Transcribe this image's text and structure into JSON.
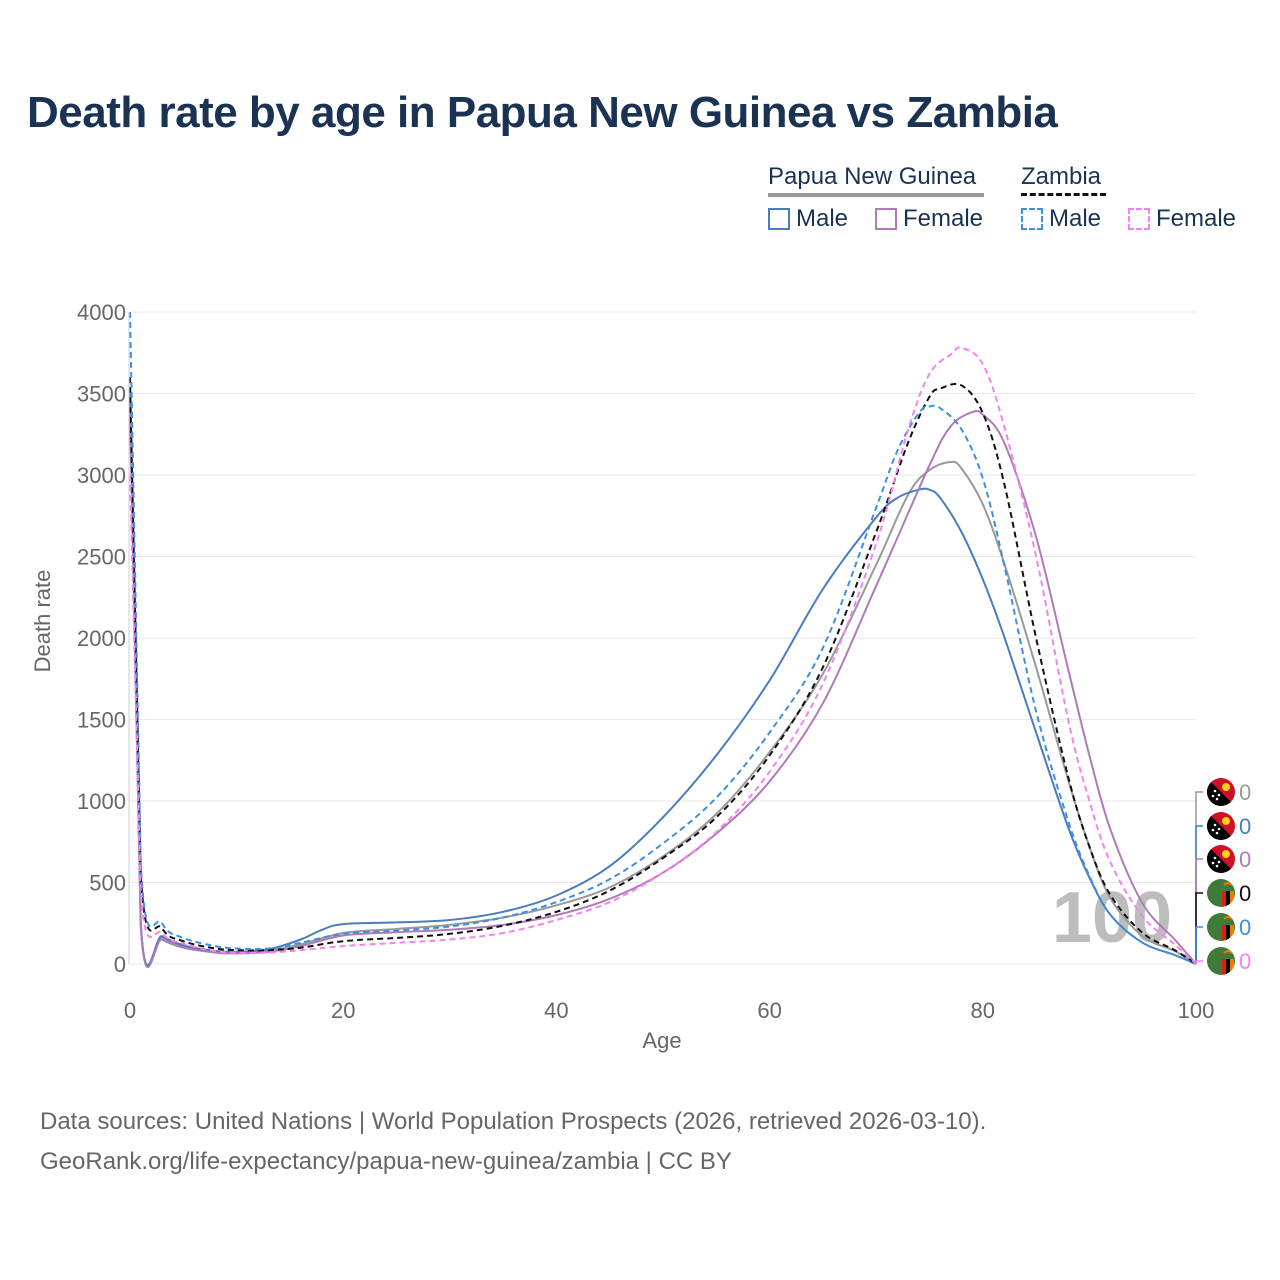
{
  "title": "Death rate by age in Papua New Guinea vs Zambia",
  "legend": {
    "group1": "Papua New Guinea",
    "group2": "Zambia",
    "male": "Male",
    "female": "Female"
  },
  "footer": {
    "line1": "Data sources: United Nations | World Population Prospects (2026, retrieved 2026-03-10).",
    "line2": "GeoRank.org/life-expectancy/papua-new-guinea/zambia | CC BY"
  },
  "watermark": "100",
  "colors": {
    "png_total": "#999999",
    "png_male": "#4a7cc0",
    "png_female": "#b07ab8",
    "zmb_total": "#111111",
    "zmb_male": "#3d8fe0",
    "zmb_female": "#f283f0",
    "title": "#1b3353",
    "axis_text": "#666666",
    "grid": "#e8e8e8"
  },
  "end_labels": [
    {
      "value": "0",
      "flag": "png-flag-icon",
      "series": "png_total"
    },
    {
      "value": "0",
      "flag": "png-flag-icon",
      "series": "png_male"
    },
    {
      "value": "0",
      "flag": "png-flag-icon",
      "series": "png_female"
    },
    {
      "value": "0",
      "flag": "zambia-flag-icon",
      "series": "zmb_total"
    },
    {
      "value": "0",
      "flag": "zambia-flag-icon",
      "series": "zmb_male"
    },
    {
      "value": "0",
      "flag": "zambia-flag-icon",
      "series": "zmb_female"
    }
  ],
  "chart_data": {
    "type": "line",
    "xlabel": "Age",
    "ylabel": "Death rate",
    "xlim": [
      0,
      100
    ],
    "ylim": [
      0,
      4000
    ],
    "xticks": [
      0,
      20,
      40,
      60,
      80,
      100
    ],
    "yticks": [
      0,
      500,
      1000,
      1500,
      2000,
      2500,
      3000,
      3500,
      4000
    ],
    "grid": true,
    "series": [
      {
        "name": "Papua New Guinea Total",
        "key": "png_total",
        "dashed": false,
        "x": [
          0,
          1,
          3,
          5,
          8,
          10,
          13,
          16,
          20,
          25,
          30,
          35,
          40,
          45,
          50,
          55,
          60,
          65,
          70,
          73,
          75,
          77,
          78,
          80,
          82,
          85,
          88,
          90,
          92,
          95,
          98,
          100
        ],
        "y": [
          3450,
          250,
          160,
          110,
          75,
          70,
          80,
          120,
          190,
          215,
          240,
          285,
          360,
          470,
          660,
          920,
          1300,
          1780,
          2450,
          2880,
          3030,
          3080,
          3040,
          2820,
          2460,
          1820,
          1130,
          720,
          400,
          170,
          80,
          0
        ]
      },
      {
        "name": "Papua New Guinea Male",
        "key": "png_male",
        "dashed": false,
        "x": [
          0,
          1,
          3,
          5,
          8,
          10,
          13,
          16,
          18,
          20,
          25,
          30,
          35,
          40,
          45,
          50,
          55,
          60,
          65,
          70,
          72,
          74,
          75,
          76,
          78,
          80,
          82,
          85,
          88,
          90,
          92,
          95,
          98,
          100
        ],
        "y": [
          3500,
          260,
          170,
          115,
          80,
          75,
          90,
          150,
          210,
          245,
          255,
          270,
          320,
          420,
          600,
          900,
          1280,
          1740,
          2300,
          2740,
          2860,
          2910,
          2910,
          2860,
          2650,
          2360,
          2010,
          1420,
          840,
          530,
          300,
          130,
          55,
          0
        ]
      },
      {
        "name": "Papua New Guinea Female",
        "key": "png_female",
        "dashed": false,
        "x": [
          0,
          1,
          3,
          5,
          8,
          10,
          13,
          16,
          20,
          25,
          30,
          35,
          40,
          45,
          50,
          55,
          60,
          65,
          70,
          75,
          77,
          79,
          80,
          82,
          85,
          88,
          90,
          92,
          95,
          98,
          100
        ],
        "y": [
          3380,
          240,
          150,
          100,
          70,
          65,
          75,
          110,
          175,
          195,
          210,
          240,
          300,
          400,
          560,
          800,
          1120,
          1600,
          2320,
          3060,
          3300,
          3385,
          3370,
          3200,
          2620,
          1810,
          1280,
          820,
          370,
          150,
          0
        ]
      },
      {
        "name": "Zambia Total",
        "key": "zmb_total",
        "dashed": true,
        "x": [
          0,
          1,
          3,
          5,
          8,
          10,
          13,
          16,
          20,
          25,
          30,
          35,
          40,
          45,
          50,
          55,
          60,
          65,
          70,
          73,
          75,
          76,
          78,
          80,
          82,
          85,
          88,
          90,
          92,
          95,
          98,
          100
        ],
        "y": [
          3600,
          560,
          220,
          140,
          95,
          85,
          85,
          100,
          140,
          160,
          185,
          235,
          320,
          450,
          650,
          900,
          1280,
          1820,
          2650,
          3200,
          3480,
          3530,
          3550,
          3380,
          2950,
          2000,
          1150,
          720,
          420,
          190,
          85,
          0
        ]
      },
      {
        "name": "Zambia Male",
        "key": "zmb_male",
        "dashed": true,
        "x": [
          0,
          1,
          3,
          5,
          8,
          10,
          13,
          16,
          20,
          25,
          30,
          35,
          40,
          45,
          50,
          55,
          60,
          65,
          70,
          72,
          74,
          75,
          76,
          78,
          80,
          82,
          85,
          88,
          90,
          92,
          95,
          98,
          100
        ],
        "y": [
          4000,
          620,
          250,
          160,
          110,
          95,
          95,
          130,
          185,
          205,
          230,
          285,
          380,
          520,
          740,
          1020,
          1420,
          1940,
          2800,
          3150,
          3380,
          3420,
          3410,
          3280,
          2980,
          2450,
          1550,
          880,
          540,
          300,
          130,
          55,
          0
        ]
      },
      {
        "name": "Zambia Female",
        "key": "zmb_female",
        "dashed": true,
        "x": [
          0,
          1,
          3,
          5,
          8,
          10,
          13,
          16,
          20,
          25,
          30,
          35,
          40,
          45,
          50,
          55,
          60,
          65,
          70,
          73,
          75,
          77,
          78,
          80,
          82,
          85,
          88,
          90,
          92,
          95,
          98,
          100
        ],
        "y": [
          3000,
          450,
          190,
          125,
          80,
          70,
          70,
          85,
          110,
          130,
          150,
          190,
          270,
          380,
          560,
          810,
          1180,
          1720,
          2580,
          3280,
          3620,
          3740,
          3780,
          3680,
          3300,
          2500,
          1500,
          1000,
          620,
          290,
          120,
          0
        ]
      }
    ]
  }
}
